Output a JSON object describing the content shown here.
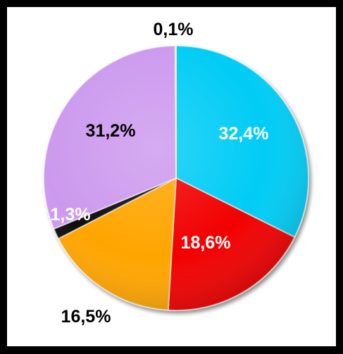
{
  "chart_data": {
    "type": "pie",
    "title": "",
    "start_angle_deg": 0,
    "direction": "clockwise",
    "slices": [
      {
        "label": "32,4%",
        "value": 32.4,
        "color": "#00ccf5",
        "label_color": "#ffffff"
      },
      {
        "label": "18,6%",
        "value": 18.6,
        "color": "#f20000",
        "label_color": "#ffffff"
      },
      {
        "label": "16,5%",
        "value": 16.5,
        "color": "#ffa500",
        "label_color": "#000000"
      },
      {
        "label": "1,3%",
        "value": 1.3,
        "color": "#111111",
        "label_color": "#ffffff"
      },
      {
        "label": "31,2%",
        "value": 31.2,
        "color": "#cc99ee",
        "label_color": "#000000"
      },
      {
        "label": "0,1%",
        "value": 0.1,
        "color": "#e0e0e0",
        "label_color": "#000000"
      }
    ]
  }
}
